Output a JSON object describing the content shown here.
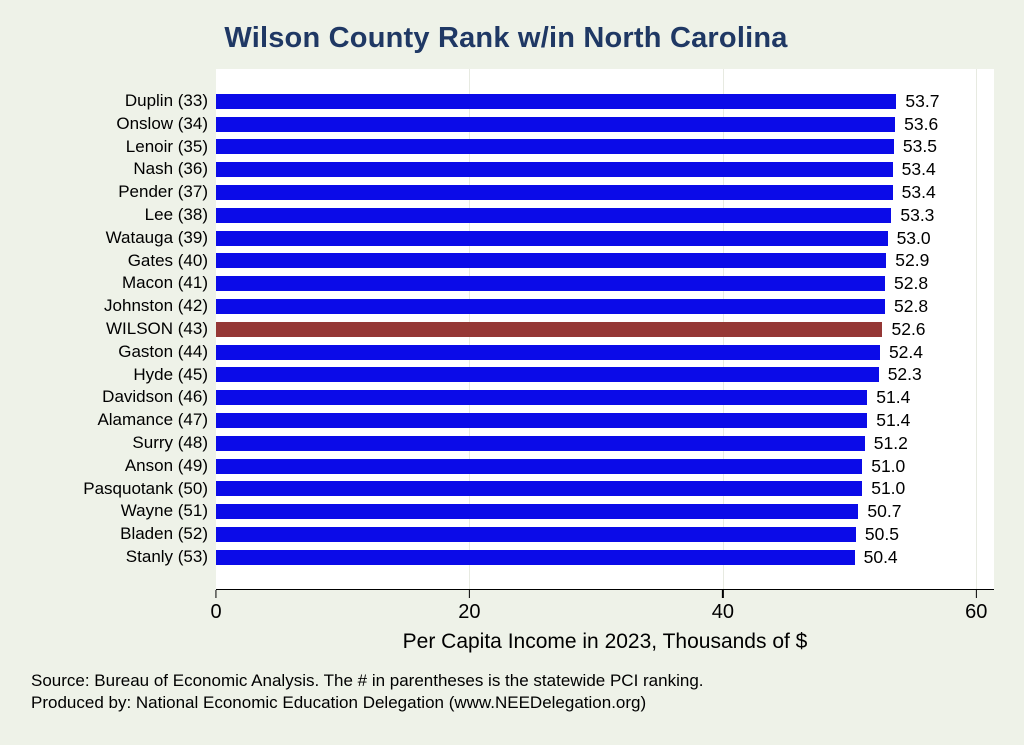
{
  "chart_data": {
    "type": "bar",
    "orientation": "horizontal",
    "title": "Wilson County Rank w/in North Carolina",
    "xlabel": "Per Capita Income in 2023, Thousands of $",
    "categories": [
      "Duplin (33)",
      "Onslow (34)",
      "Lenoir (35)",
      "Nash (36)",
      "Pender (37)",
      "Lee (38)",
      "Watauga (39)",
      "Gates (40)",
      "Macon (41)",
      "Johnston (42)",
      "WILSON (43)",
      "Gaston (44)",
      "Hyde (45)",
      "Davidson (46)",
      "Alamance (47)",
      "Surry (48)",
      "Anson (49)",
      "Pasquotank (50)",
      "Wayne (51)",
      "Bladen (52)",
      "Stanly (53)"
    ],
    "values": [
      53.7,
      53.6,
      53.5,
      53.4,
      53.4,
      53.3,
      53.0,
      52.9,
      52.8,
      52.8,
      52.6,
      52.4,
      52.3,
      51.4,
      51.4,
      51.2,
      51.0,
      51.0,
      50.7,
      50.5,
      50.4
    ],
    "value_labels": [
      "53.7",
      "53.6",
      "53.5",
      "53.4",
      "53.4",
      "53.3",
      "53.0",
      "52.9",
      "52.8",
      "52.8",
      "52.6",
      "52.4",
      "52.3",
      "51.4",
      "51.4",
      "51.2",
      "51.0",
      "51.0",
      "50.7",
      "50.5",
      "50.4"
    ],
    "highlight_category": "WILSON (43)",
    "highlight_index": 10,
    "x_ticks": [
      0,
      20,
      40,
      60
    ],
    "xlim": [
      0,
      61.4
    ],
    "grid": true,
    "legend": "none",
    "colors": {
      "bar": "#0b0be8",
      "highlight": "#953735",
      "title": "#1f3864",
      "background": "#eef2e8",
      "plot_background": "#ffffff",
      "gridline": "#e7eae1",
      "axis": "#000000",
      "text": "#000000"
    }
  },
  "footer": {
    "line1": "Source: Bureau of Economic Analysis. The # in parentheses is the statewide PCI ranking.",
    "line2": "Produced by: National Economic Education Delegation (www.NEEDelegation.org)"
  }
}
